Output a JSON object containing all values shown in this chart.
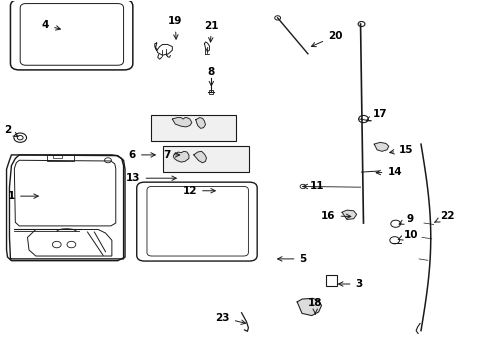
{
  "background_color": "#ffffff",
  "line_color": "#1a1a1a",
  "text_color": "#000000",
  "font_size": 7.5,
  "label_data": [
    [
      1,
      0.085,
      0.545,
      0.022,
      0.545
    ],
    [
      2,
      0.042,
      0.385,
      0.014,
      0.36
    ],
    [
      3,
      0.685,
      0.79,
      0.735,
      0.79
    ],
    [
      4,
      0.13,
      0.082,
      0.092,
      0.068
    ],
    [
      5,
      0.56,
      0.72,
      0.62,
      0.72
    ],
    [
      6,
      0.325,
      0.43,
      0.27,
      0.43
    ],
    [
      7,
      0.375,
      0.43,
      0.34,
      0.43
    ],
    [
      8,
      0.432,
      0.248,
      0.432,
      0.2
    ],
    [
      9,
      0.81,
      0.628,
      0.84,
      0.608
    ],
    [
      10,
      0.808,
      0.67,
      0.842,
      0.652
    ],
    [
      11,
      0.618,
      0.518,
      0.648,
      0.518
    ],
    [
      12,
      0.448,
      0.53,
      0.388,
      0.53
    ],
    [
      13,
      0.368,
      0.495,
      0.272,
      0.495
    ],
    [
      14,
      0.762,
      0.48,
      0.808,
      0.478
    ],
    [
      15,
      0.79,
      0.425,
      0.832,
      0.416
    ],
    [
      16,
      0.726,
      0.602,
      0.672,
      0.6
    ],
    [
      17,
      0.748,
      0.336,
      0.778,
      0.316
    ],
    [
      18,
      0.645,
      0.875,
      0.645,
      0.844
    ],
    [
      19,
      0.36,
      0.118,
      0.358,
      0.058
    ],
    [
      20,
      0.63,
      0.132,
      0.686,
      0.098
    ],
    [
      21,
      0.43,
      0.126,
      0.432,
      0.07
    ],
    [
      22,
      0.884,
      0.622,
      0.916,
      0.6
    ],
    [
      23,
      0.51,
      0.902,
      0.455,
      0.884
    ]
  ]
}
